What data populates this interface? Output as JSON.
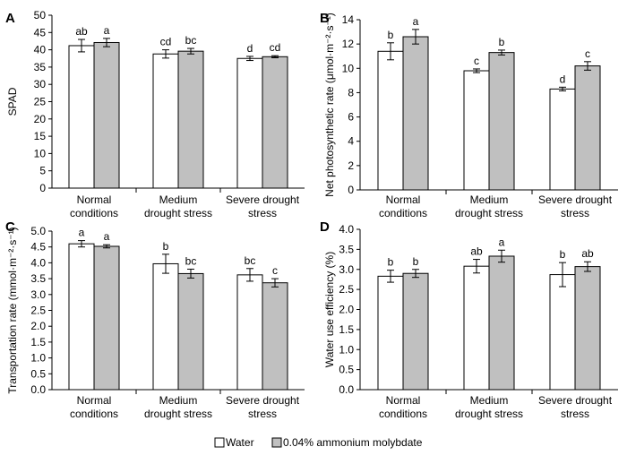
{
  "legend": {
    "items": [
      {
        "label": "Water",
        "color": "#ffffff"
      },
      {
        "label": "0.04% ammonium molybdate",
        "color": "#c0c0c0"
      }
    ]
  },
  "chart_data": [
    {
      "panel": "A",
      "type": "bar",
      "ylabel": "SPAD",
      "ylim": [
        0,
        50
      ],
      "yticks": [
        0,
        5,
        10,
        15,
        20,
        25,
        30,
        35,
        40,
        45,
        50
      ],
      "categories": [
        "Normal conditions",
        "Medium drought stress",
        "Severe drought stress"
      ],
      "category_lines": [
        [
          "Normal",
          "conditions"
        ],
        [
          "Medium",
          "drought stress"
        ],
        [
          "Severe drought",
          "stress"
        ]
      ],
      "series": [
        {
          "values": [
            41.2,
            38.8,
            37.5
          ],
          "errors": [
            1.8,
            1.2,
            0.6
          ],
          "letters": [
            "ab",
            "cd",
            "d"
          ]
        },
        {
          "values": [
            42.1,
            39.6,
            38.0
          ],
          "errors": [
            1.2,
            0.8,
            0.3
          ],
          "letters": [
            "a",
            "bc",
            "cd"
          ]
        }
      ]
    },
    {
      "panel": "B",
      "type": "bar",
      "ylabel": "Net photosynthetic rate (μmol·m⁻²·s⁻¹)",
      "ylim": [
        0,
        14
      ],
      "yticks": [
        0,
        2,
        4,
        6,
        8,
        10,
        12,
        14
      ],
      "categories": [
        "Normal conditions",
        "Medium drought stress",
        "Severe drought stress"
      ],
      "category_lines": [
        [
          "Normal",
          "conditions"
        ],
        [
          "Medium",
          "drought stress"
        ],
        [
          "Severe drought",
          "stress"
        ]
      ],
      "series": [
        {
          "values": [
            11.4,
            9.8,
            8.3
          ],
          "errors": [
            0.7,
            0.15,
            0.15
          ],
          "letters": [
            "b",
            "c",
            "d"
          ]
        },
        {
          "values": [
            12.6,
            11.3,
            10.2
          ],
          "errors": [
            0.6,
            0.2,
            0.35
          ],
          "letters": [
            "a",
            "b",
            "c"
          ]
        }
      ]
    },
    {
      "panel": "C",
      "type": "bar",
      "ylabel": "Transportation rate (mmol·m⁻²·s⁻¹)",
      "ylim": [
        0,
        5
      ],
      "yticks": [
        0,
        0.5,
        1.0,
        1.5,
        2.0,
        2.5,
        3.0,
        3.5,
        4.0,
        4.5,
        5.0
      ],
      "tick_format": 1,
      "categories": [
        "Normal conditions",
        "Medium drought stress",
        "Severe drought stress"
      ],
      "category_lines": [
        [
          "Normal",
          "conditions"
        ],
        [
          "Medium",
          "drought stress"
        ],
        [
          "Severe drought",
          "stress"
        ]
      ],
      "series": [
        {
          "values": [
            4.6,
            3.97,
            3.62
          ],
          "errors": [
            0.1,
            0.3,
            0.2
          ],
          "letters": [
            "a",
            "b",
            "bc"
          ]
        },
        {
          "values": [
            4.52,
            3.66,
            3.37
          ],
          "errors": [
            0.05,
            0.14,
            0.13
          ],
          "letters": [
            "a",
            "bc",
            "c"
          ]
        }
      ]
    },
    {
      "panel": "D",
      "type": "bar",
      "ylabel": "Water use efficiency (%)",
      "ylim": [
        0,
        4
      ],
      "yticks": [
        0,
        0.5,
        1.0,
        1.5,
        2.0,
        2.5,
        3.0,
        3.5,
        4.0
      ],
      "tick_format": 1,
      "categories": [
        "Normal conditions",
        "Medium drought stress",
        "Severe drought stress"
      ],
      "category_lines": [
        [
          "Normal",
          "conditions"
        ],
        [
          "Medium",
          "drought stress"
        ],
        [
          "Severe drought",
          "stress"
        ]
      ],
      "series": [
        {
          "values": [
            2.83,
            3.08,
            2.87
          ],
          "errors": [
            0.15,
            0.17,
            0.3
          ],
          "letters": [
            "b",
            "ab",
            "b"
          ]
        },
        {
          "values": [
            2.9,
            3.33,
            3.07
          ],
          "errors": [
            0.1,
            0.15,
            0.12
          ],
          "letters": [
            "b",
            "a",
            "ab"
          ]
        }
      ]
    }
  ]
}
